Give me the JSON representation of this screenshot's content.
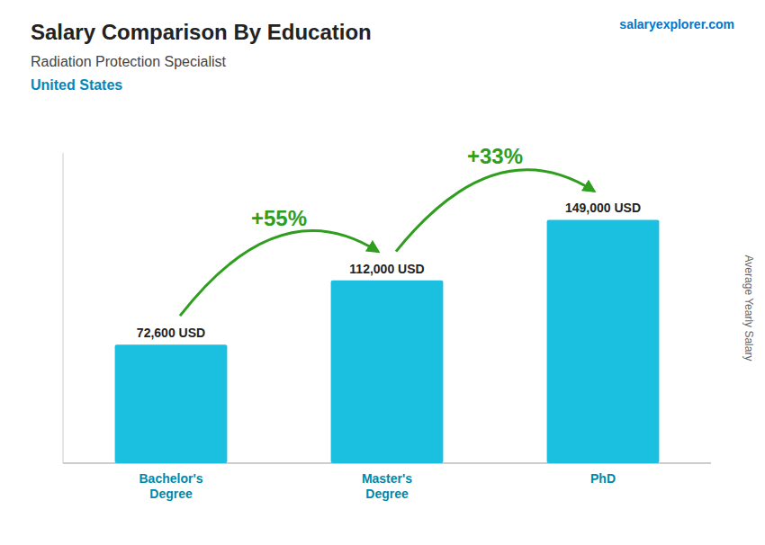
{
  "chart_data": {
    "type": "bar",
    "title": "Salary Comparison By Education",
    "subtitle": "Radiation Protection Specialist",
    "country": "United States",
    "source": "salaryexplorer.com",
    "ylabel": "Average Yearly Salary",
    "categories": [
      "Bachelor's\nDegree",
      "Master's\nDegree",
      "PhD"
    ],
    "values": [
      72600,
      112000,
      149000
    ],
    "value_labels": [
      "72,600 USD",
      "112,000 USD",
      "149,000 USD"
    ],
    "data_labels": true,
    "annotations": [
      "+55%",
      "+33%"
    ],
    "color": "#1bbfe0",
    "ylim": [
      0,
      190000
    ],
    "grid": false,
    "tick_labels": "x"
  }
}
